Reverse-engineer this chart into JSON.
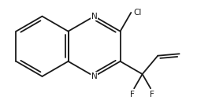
{
  "bg_color": "#ffffff",
  "line_color": "#1a1a1a",
  "line_width": 1.3,
  "font_size": 7.5,
  "figsize": [
    2.5,
    1.32
  ],
  "dpi": 100,
  "labels": {
    "N_top": "N",
    "N_bot": "N",
    "Cl": "Cl",
    "F_left": "F",
    "F_right": "F"
  }
}
